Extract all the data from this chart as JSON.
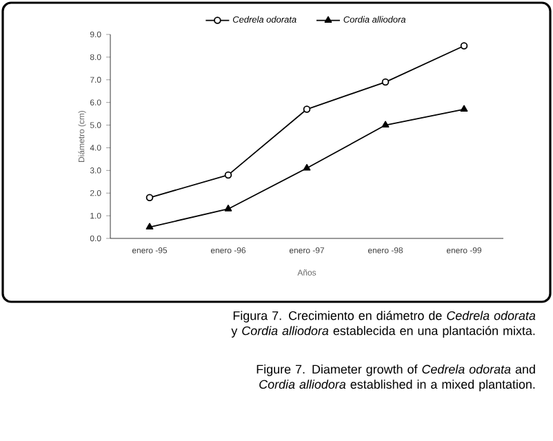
{
  "chart_data": {
    "type": "line",
    "xlabel": "Años",
    "ylabel": "Diámetro (cm)",
    "categories": [
      "enero -95",
      "enero -96",
      "enero -97",
      "enero -98",
      "enero -99"
    ],
    "series": [
      {
        "name": "*Cedrela odorata*",
        "color": "#000000",
        "marker": "circle",
        "values": [
          1.8,
          2.8,
          5.7,
          6.9,
          8.5
        ]
      },
      {
        "name": "*Cordia alliodora*",
        "color": "#000000",
        "marker": "triangle",
        "values": [
          0.5,
          1.3,
          3.1,
          5.0,
          5.7
        ]
      }
    ],
    "ylim": [
      0,
      9
    ],
    "yticks": [
      {
        "value": 0,
        "label": "0.0"
      },
      {
        "value": 1,
        "label": "1.0"
      },
      {
        "value": 2,
        "label": "2.0"
      },
      {
        "value": 3,
        "label": "3.0"
      },
      {
        "value": 4,
        "label": "4.0"
      },
      {
        "value": 5,
        "label": "5.0"
      },
      {
        "value": 6,
        "label": "6.0"
      },
      {
        "value": 7,
        "label": "7.0"
      },
      {
        "value": 8,
        "label": "8.0"
      },
      {
        "value": 9,
        "label": "9.0"
      }
    ],
    "legend": "top",
    "grid": false,
    "line_style": "solid",
    "annotations": [
      "Figura 7. Crecimiento en diámetro de *Cedrela odorata* y *Cordia alliodora* establecida en una plantación mixta.",
      "Figure 7. Diameter growth of *Cedrela odorata* and *Cordia alliodora* established in a mixed plantation."
    ]
  }
}
